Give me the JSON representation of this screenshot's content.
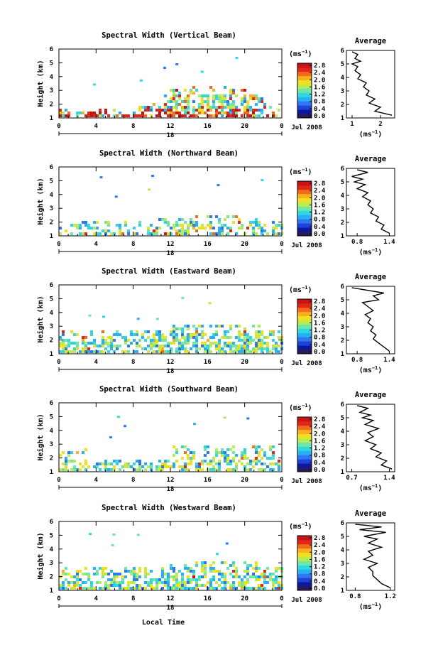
{
  "figure": {
    "xlabel": "Local Time",
    "date": "Jul 2008",
    "day": "18",
    "units": "(ms",
    "units_exp": "−1",
    "avg_title": "Average"
  },
  "colormap": [
    "#2a1a5a",
    "#0a1a9a",
    "#1f43d8",
    "#2f78f0",
    "#28b0f5",
    "#2fd8e0",
    "#6ee6a6",
    "#b8ec50",
    "#f0e020",
    "#f8b020",
    "#f46a1c",
    "#e02818",
    "#c81414"
  ],
  "chart_data": [
    {
      "type": "heatmap",
      "title": "Spectral Width (Vertical Beam)",
      "xlabel": "",
      "ylabel": "Height (km)",
      "xlim": [
        0,
        24
      ],
      "ylim": [
        1,
        6
      ],
      "xticks": [
        "0",
        "4",
        "8",
        "12",
        "16",
        "20",
        "0"
      ],
      "yticks": [
        "1",
        "2",
        "3",
        "4",
        "5",
        "6"
      ],
      "colorbar": {
        "ticks": [
          "0.0",
          "0.4",
          "0.8",
          "1.2",
          "1.6",
          "2.0",
          "2.4",
          "2.8"
        ],
        "range": [
          0,
          2.8
        ]
      },
      "average": {
        "type": "line",
        "title": "Average",
        "xlabel": "(ms−1)",
        "xticks": [
          "1",
          "2"
        ],
        "xlim": [
          0.8,
          2.5
        ],
        "ylim": [
          1,
          6
        ],
        "x": [
          1.0,
          1.2,
          1.1,
          1.3,
          1.0,
          1.2,
          1.1,
          1.3,
          1.2,
          1.5,
          1.4,
          1.6,
          1.5,
          1.8,
          1.6,
          2.0,
          1.8,
          2.4
        ],
        "y": [
          5.9,
          5.7,
          5.4,
          5.2,
          5.0,
          4.8,
          4.5,
          4.2,
          3.9,
          3.6,
          3.3,
          3.0,
          2.7,
          2.4,
          2.1,
          1.8,
          1.5,
          1.2
        ]
      }
    },
    {
      "type": "heatmap",
      "title": "Spectral Width (Northward Beam)",
      "xlabel": "",
      "ylabel": "Height (km)",
      "xlim": [
        0,
        24
      ],
      "ylim": [
        1,
        6
      ],
      "xticks": [
        "0",
        "4",
        "8",
        "12",
        "16",
        "20",
        "0"
      ],
      "yticks": [
        "1",
        "2",
        "3",
        "4",
        "5",
        "6"
      ],
      "colorbar": {
        "ticks": [
          "0.0",
          "0.4",
          "0.8",
          "1.2",
          "1.6",
          "2.0",
          "2.4",
          "2.8"
        ],
        "range": [
          0,
          2.8
        ]
      },
      "average": {
        "type": "line",
        "title": "Average",
        "xlabel": "(ms−1)",
        "xticks": [
          "0.8",
          "1.4"
        ],
        "xlim": [
          0.6,
          1.5
        ],
        "ylim": [
          1,
          6
        ],
        "x": [
          0.8,
          1.0,
          0.7,
          0.9,
          0.75,
          0.95,
          0.8,
          1.0,
          0.9,
          1.05,
          1.0,
          1.1,
          1.05,
          1.2,
          1.15,
          1.3,
          1.25,
          1.4
        ],
        "y": [
          5.9,
          5.7,
          5.4,
          5.2,
          5.0,
          4.8,
          4.5,
          4.2,
          3.9,
          3.6,
          3.3,
          3.0,
          2.7,
          2.4,
          2.1,
          1.8,
          1.5,
          1.2
        ]
      }
    },
    {
      "type": "heatmap",
      "title": "Spectral Width (Eastward Beam)",
      "xlabel": "",
      "ylabel": "Height (km)",
      "xlim": [
        0,
        24
      ],
      "ylim": [
        1,
        6
      ],
      "xticks": [
        "0",
        "4",
        "8",
        "12",
        "16",
        "20",
        "0"
      ],
      "yticks": [
        "1",
        "2",
        "3",
        "4",
        "5",
        "6"
      ],
      "colorbar": {
        "ticks": [
          "0.0",
          "0.4",
          "0.8",
          "1.2",
          "1.6",
          "2.0",
          "2.4",
          "2.8"
        ],
        "range": [
          0,
          2.8
        ]
      },
      "average": {
        "type": "line",
        "title": "Average",
        "xlabel": "(ms−1)",
        "xticks": [
          "0.8",
          "1.4"
        ],
        "xlim": [
          0.6,
          1.5
        ],
        "ylim": [
          1,
          6
        ],
        "x": [
          0.7,
          1.0,
          1.3,
          1.1,
          1.2,
          0.9,
          1.0,
          1.1,
          0.95,
          1.05,
          1.0,
          1.1,
          1.05,
          1.15,
          1.1,
          1.2,
          1.3,
          1.4
        ],
        "y": [
          5.9,
          5.7,
          5.5,
          5.3,
          5.0,
          4.8,
          4.5,
          4.2,
          3.9,
          3.6,
          3.3,
          3.0,
          2.7,
          2.4,
          2.1,
          1.8,
          1.5,
          1.2
        ]
      }
    },
    {
      "type": "heatmap",
      "title": "Spectral Width (Southward Beam)",
      "xlabel": "",
      "ylabel": "Height (km)",
      "xlim": [
        0,
        24
      ],
      "ylim": [
        1,
        6
      ],
      "xticks": [
        "0",
        "4",
        "8",
        "12",
        "16",
        "20",
        "0"
      ],
      "yticks": [
        "1",
        "2",
        "3",
        "4",
        "5",
        "6"
      ],
      "colorbar": {
        "ticks": [
          "0.0",
          "0.4",
          "0.8",
          "1.2",
          "1.6",
          "2.0",
          "2.4",
          "2.8"
        ],
        "range": [
          0,
          2.8
        ]
      },
      "average": {
        "type": "line",
        "title": "Average",
        "xlabel": "(ms−1)",
        "xticks": [
          "0.7",
          "1.4"
        ],
        "xlim": [
          0.6,
          1.5
        ],
        "ylim": [
          1,
          6
        ],
        "x": [
          0.8,
          1.0,
          0.85,
          1.05,
          0.9,
          1.1,
          0.95,
          1.2,
          1.0,
          1.1,
          0.95,
          1.15,
          1.05,
          1.25,
          1.15,
          1.35,
          1.25,
          1.45
        ],
        "y": [
          5.9,
          5.7,
          5.4,
          5.2,
          5.0,
          4.8,
          4.5,
          4.2,
          3.9,
          3.6,
          3.3,
          3.0,
          2.7,
          2.4,
          2.1,
          1.8,
          1.5,
          1.2
        ]
      }
    },
    {
      "type": "heatmap",
      "title": "Spectral Width (Westward Beam)",
      "xlabel": "Local Time",
      "ylabel": "Height (km)",
      "xlim": [
        0,
        24
      ],
      "ylim": [
        1,
        6
      ],
      "xticks": [
        "0",
        "4",
        "8",
        "12",
        "16",
        "20",
        "0"
      ],
      "yticks": [
        "1",
        "2",
        "3",
        "4",
        "5",
        "6"
      ],
      "colorbar": {
        "ticks": [
          "0.0",
          "0.4",
          "0.8",
          "1.2",
          "1.6",
          "2.0",
          "2.4",
          "2.8"
        ],
        "range": [
          0,
          2.8
        ]
      },
      "average": {
        "type": "line",
        "title": "Average",
        "xlabel": "(ms−1)",
        "xticks": [
          "0.8",
          "1.2"
        ],
        "xlim": [
          0.7,
          1.25
        ],
        "ylim": [
          1,
          6
        ],
        "x": [
          0.8,
          1.1,
          0.85,
          1.15,
          0.9,
          1.05,
          0.95,
          1.1,
          0.95,
          1.0,
          0.9,
          1.05,
          0.95,
          1.0,
          1.0,
          1.05,
          1.1,
          1.2
        ],
        "y": [
          5.9,
          5.7,
          5.5,
          5.3,
          5.0,
          4.8,
          4.5,
          4.2,
          3.9,
          3.6,
          3.3,
          3.0,
          2.7,
          2.4,
          2.1,
          1.8,
          1.5,
          1.2
        ]
      }
    }
  ]
}
